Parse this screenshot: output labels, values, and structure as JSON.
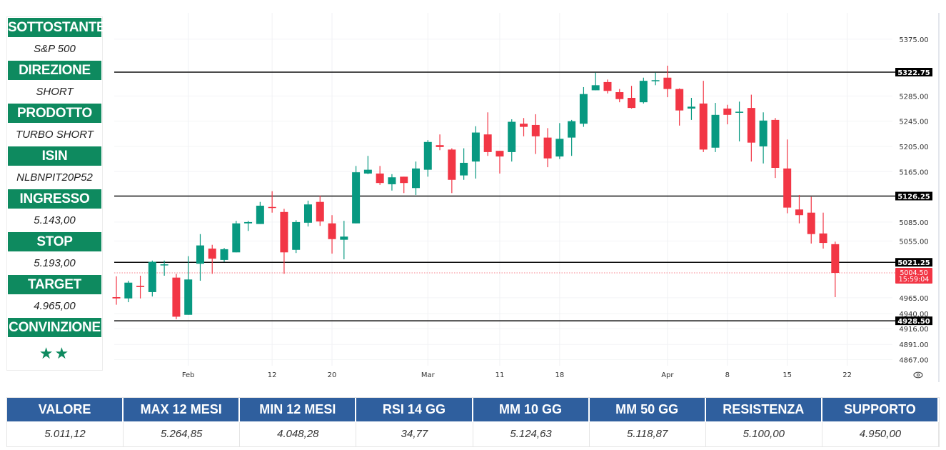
{
  "colors": {
    "panel_green": "#0e8a5f",
    "table_blue": "#2f5f9e",
    "up": "#089981",
    "down": "#f23645",
    "level": "#111111"
  },
  "info_panel": [
    {
      "label": "SOTTOSTANTE",
      "value": "S&P 500"
    },
    {
      "label": "DIREZIONE",
      "value": "SHORT"
    },
    {
      "label": "PRODOTTO",
      "value": "TURBO SHORT"
    },
    {
      "label": "ISIN",
      "value": "NLBNPIT20P52"
    },
    {
      "label": "INGRESSO",
      "value": "5.143,00"
    },
    {
      "label": "STOP",
      "value": "5.193,00"
    },
    {
      "label": "TARGET",
      "value": "4.965,00"
    },
    {
      "label": "CONVINZIONE",
      "value": "★★"
    }
  ],
  "stats_table": {
    "headers": [
      "VALORE",
      "MAX 12 MESI",
      "MIN 12 MESI",
      "RSI 14 GG",
      "MM 10 GG",
      "MM 50 GG",
      "RESISTENZA",
      "SUPPORTO"
    ],
    "values": [
      "5.011,12",
      "5.264,85",
      "4.048,28",
      "34,77",
      "5.124,63",
      "5.118,87",
      "5.100,00",
      "4.950,00"
    ]
  },
  "chart_data": {
    "type": "candlestick",
    "title": "",
    "ylim": [
      4855,
      5395
    ],
    "y_ticks": [
      "5375.00",
      "5285.00",
      "5245.00",
      "5205.00",
      "5165.00",
      "5085.00",
      "5055.00",
      "4965.00",
      "4940.00",
      "4916.00",
      "4891.00",
      "4867.00"
    ],
    "x_ticks": [
      {
        "index": 6,
        "label": "Feb"
      },
      {
        "index": 13,
        "label": "12"
      },
      {
        "index": 18,
        "label": "20"
      },
      {
        "index": 26,
        "label": "Mar"
      },
      {
        "index": 32,
        "label": "11"
      },
      {
        "index": 37,
        "label": "18"
      },
      {
        "index": 46,
        "label": "Apr"
      },
      {
        "index": 51,
        "label": "8"
      },
      {
        "index": 56,
        "label": "15"
      },
      {
        "index": 61,
        "label": "22"
      }
    ],
    "levels": [
      {
        "price": 5322.75,
        "label": "5322.75"
      },
      {
        "price": 5126.25,
        "label": "5126.25"
      },
      {
        "price": 5021.25,
        "label": "5021.25"
      },
      {
        "price": 4928.5,
        "label": "4928.50"
      }
    ],
    "last_price": {
      "price": 5004.5,
      "label": "5004.50",
      "countdown": "15:59:04"
    },
    "ohlc": [
      [
        4966,
        4999,
        4954,
        4964
      ],
      [
        4964,
        4992,
        4958,
        4989
      ],
      [
        4984,
        5000,
        4964,
        4982
      ],
      [
        4974,
        5024,
        4967,
        5022
      ],
      [
        5017,
        5024,
        5000,
        5018
      ],
      [
        4997,
        5003,
        4931,
        4935
      ],
      [
        4938,
        5031,
        4938,
        4994
      ],
      [
        5019,
        5066,
        4992,
        5048
      ],
      [
        5043,
        5049,
        5003,
        5027
      ],
      [
        5025,
        5044,
        5022,
        5042
      ],
      [
        5037,
        5087,
        5037,
        5083
      ],
      [
        5083,
        5087,
        5071,
        5085
      ],
      [
        5082,
        5117,
        5082,
        5111
      ],
      [
        5109,
        5134,
        5100,
        5108
      ],
      [
        5101,
        5106,
        5003,
        5037
      ],
      [
        5041,
        5088,
        5036,
        5085
      ],
      [
        5084,
        5119,
        5078,
        5113
      ],
      [
        5117,
        5127,
        5079,
        5086
      ],
      [
        5083,
        5096,
        5035,
        5058
      ],
      [
        5057,
        5087,
        5026,
        5062
      ],
      [
        5083,
        5174,
        5083,
        5164
      ],
      [
        5162,
        5190,
        5161,
        5168
      ],
      [
        5162,
        5174,
        5144,
        5147
      ],
      [
        5145,
        5161,
        5135,
        5156
      ],
      [
        5157,
        5157,
        5131,
        5147
      ],
      [
        5139,
        5181,
        5128,
        5170
      ],
      [
        5168,
        5215,
        5157,
        5212
      ],
      [
        5207,
        5224,
        5199,
        5204
      ],
      [
        5200,
        5202,
        5131,
        5152
      ],
      [
        5159,
        5202,
        5152,
        5179
      ],
      [
        5181,
        5237,
        5154,
        5227
      ],
      [
        5224,
        5259,
        5190,
        5196
      ],
      [
        5198,
        5198,
        5162,
        5189
      ],
      [
        5196,
        5248,
        5181,
        5244
      ],
      [
        5241,
        5250,
        5221,
        5236
      ],
      [
        5239,
        5256,
        5193,
        5221
      ],
      [
        5219,
        5234,
        5172,
        5186
      ],
      [
        5189,
        5242,
        5185,
        5217
      ],
      [
        5219,
        5247,
        5190,
        5245
      ],
      [
        5241,
        5299,
        5236,
        5288
      ],
      [
        5294,
        5322,
        5294,
        5302
      ],
      [
        5307,
        5311,
        5289,
        5293
      ],
      [
        5291,
        5296,
        5275,
        5280
      ],
      [
        5282,
        5301,
        5265,
        5266
      ],
      [
        5275,
        5314,
        5273,
        5309
      ],
      [
        5309,
        5322,
        5302,
        5310
      ],
      [
        5314,
        5333,
        5283,
        5296
      ],
      [
        5296,
        5297,
        5238,
        5262
      ],
      [
        5265,
        5282,
        5247,
        5268
      ],
      [
        5273,
        5309,
        5196,
        5200
      ],
      [
        5203,
        5274,
        5196,
        5255
      ],
      [
        5265,
        5271,
        5240,
        5255
      ],
      [
        5260,
        5276,
        5213,
        5260
      ],
      [
        5266,
        5287,
        5181,
        5211
      ],
      [
        5205,
        5259,
        5178,
        5246
      ],
      [
        5247,
        5250,
        5155,
        5171
      ],
      [
        5170,
        5216,
        5099,
        5108
      ],
      [
        5105,
        5128,
        5083,
        5096
      ],
      [
        5100,
        5125,
        5051,
        5066
      ],
      [
        5067,
        5100,
        5043,
        5052
      ],
      [
        5050,
        5054,
        4966,
        5004.5
      ]
    ]
  }
}
